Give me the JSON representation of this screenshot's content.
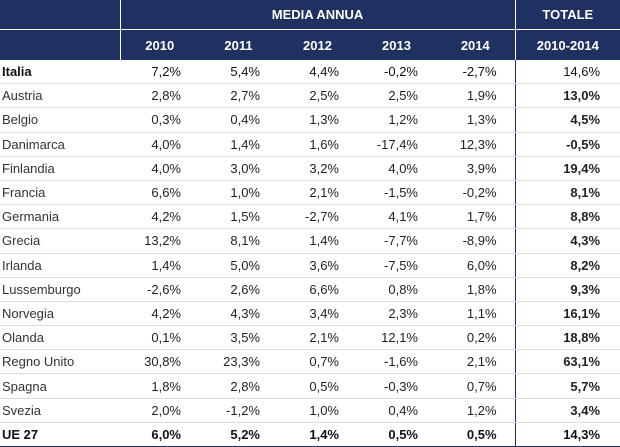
{
  "header": {
    "group_label": "MEDIA ANNUA",
    "total_label": "TOTALE",
    "years": [
      "2010",
      "2011",
      "2012",
      "2013",
      "2014"
    ],
    "total_period": "2010-2014"
  },
  "rows": [
    {
      "name": "Italia",
      "values": [
        "7,2%",
        "5,4%",
        "4,4%",
        "-0,2%",
        "-2,7%"
      ],
      "total": "14,6%"
    },
    {
      "name": "Austria",
      "values": [
        "2,8%",
        "2,7%",
        "2,5%",
        "2,5%",
        "1,9%"
      ],
      "total": "13,0%"
    },
    {
      "name": "Belgio",
      "values": [
        "0,3%",
        "0,4%",
        "1,3%",
        "1,2%",
        "1,3%"
      ],
      "total": "4,5%"
    },
    {
      "name": "Danimarca",
      "values": [
        "4,0%",
        "1,4%",
        "1,6%",
        "-17,4%",
        "12,3%"
      ],
      "total": "-0,5%"
    },
    {
      "name": "Finlandia",
      "values": [
        "4,0%",
        "3,0%",
        "3,2%",
        "4,0%",
        "3,9%"
      ],
      "total": "19,4%"
    },
    {
      "name": "Francia",
      "values": [
        "6,6%",
        "1,0%",
        "2,1%",
        "-1,5%",
        "-0,2%"
      ],
      "total": "8,1%"
    },
    {
      "name": "Germania",
      "values": [
        "4,2%",
        "1,5%",
        "-2,7%",
        "4,1%",
        "1,7%"
      ],
      "total": "8,8%"
    },
    {
      "name": "Grecia",
      "values": [
        "13,2%",
        "8,1%",
        "1,4%",
        "-7,7%",
        "-8,9%"
      ],
      "total": "4,3%"
    },
    {
      "name": "Irlanda",
      "values": [
        "1,4%",
        "5,0%",
        "3,6%",
        "-7,5%",
        "6,0%"
      ],
      "total": "8,2%"
    },
    {
      "name": "Lussemburgo",
      "values": [
        "-2,6%",
        "2,6%",
        "6,6%",
        "0,8%",
        "1,8%"
      ],
      "total": "9,3%"
    },
    {
      "name": "Norvegia",
      "values": [
        "4,2%",
        "4,3%",
        "3,4%",
        "2,3%",
        "1,1%"
      ],
      "total": "16,1%"
    },
    {
      "name": "Olanda",
      "values": [
        "0,1%",
        "3,5%",
        "2,1%",
        "12,1%",
        "0,2%"
      ],
      "total": "18,8%"
    },
    {
      "name": "Regno Unito",
      "values": [
        "30,8%",
        "23,3%",
        "0,7%",
        "-1,6%",
        "2,1%"
      ],
      "total": "63,1%"
    },
    {
      "name": "Spagna",
      "values": [
        "1,8%",
        "2,8%",
        "0,5%",
        "-0,3%",
        "0,7%"
      ],
      "total": "5,7%"
    },
    {
      "name": "Svezia",
      "values": [
        "2,0%",
        "-1,2%",
        "1,0%",
        "0,4%",
        "1,2%"
      ],
      "total": "3,4%"
    },
    {
      "name": "UE 27",
      "values": [
        "6,0%",
        "5,2%",
        "1,4%",
        "0,5%",
        "0,5%"
      ],
      "total": "14,3%"
    }
  ],
  "colors": {
    "header_bg": "#1f3161",
    "header_text": "#ffffff"
  }
}
